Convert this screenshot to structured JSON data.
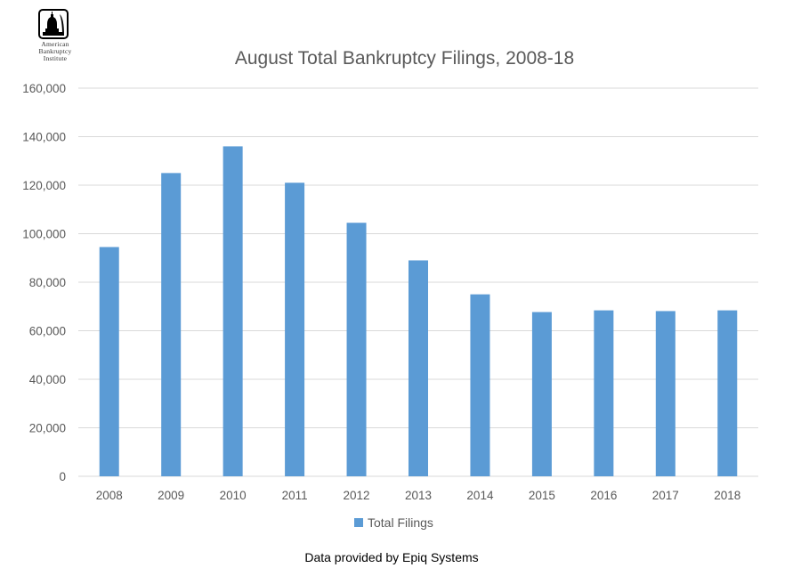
{
  "logo": {
    "line1": "American",
    "line2": "Bankruptcy",
    "line3": "Institute"
  },
  "footer": "Data provided by Epiq Systems",
  "colors": {
    "bar": "#5b9bd5",
    "grid": "#d9d9d9",
    "text": "#595959"
  },
  "chart_data": {
    "type": "bar",
    "title": "August Total Bankruptcy Filings, 2008-18",
    "xlabel": "",
    "ylabel": "",
    "categories": [
      "2008",
      "2009",
      "2010",
      "2011",
      "2012",
      "2013",
      "2014",
      "2015",
      "2016",
      "2017",
      "2018"
    ],
    "series": [
      {
        "name": "Total Filings",
        "values": [
          94500,
          125000,
          136000,
          121000,
          104500,
          89000,
          75000,
          67700,
          68400,
          68100,
          68400
        ]
      }
    ],
    "ylim": [
      0,
      160000
    ],
    "yticks": [
      0,
      20000,
      40000,
      60000,
      80000,
      100000,
      120000,
      140000,
      160000
    ],
    "ytick_labels": [
      "0",
      "20,000",
      "40,000",
      "60,000",
      "80,000",
      "100,000",
      "120,000",
      "140,000",
      "160,000"
    ],
    "grid": true,
    "legend": "bottom"
  }
}
